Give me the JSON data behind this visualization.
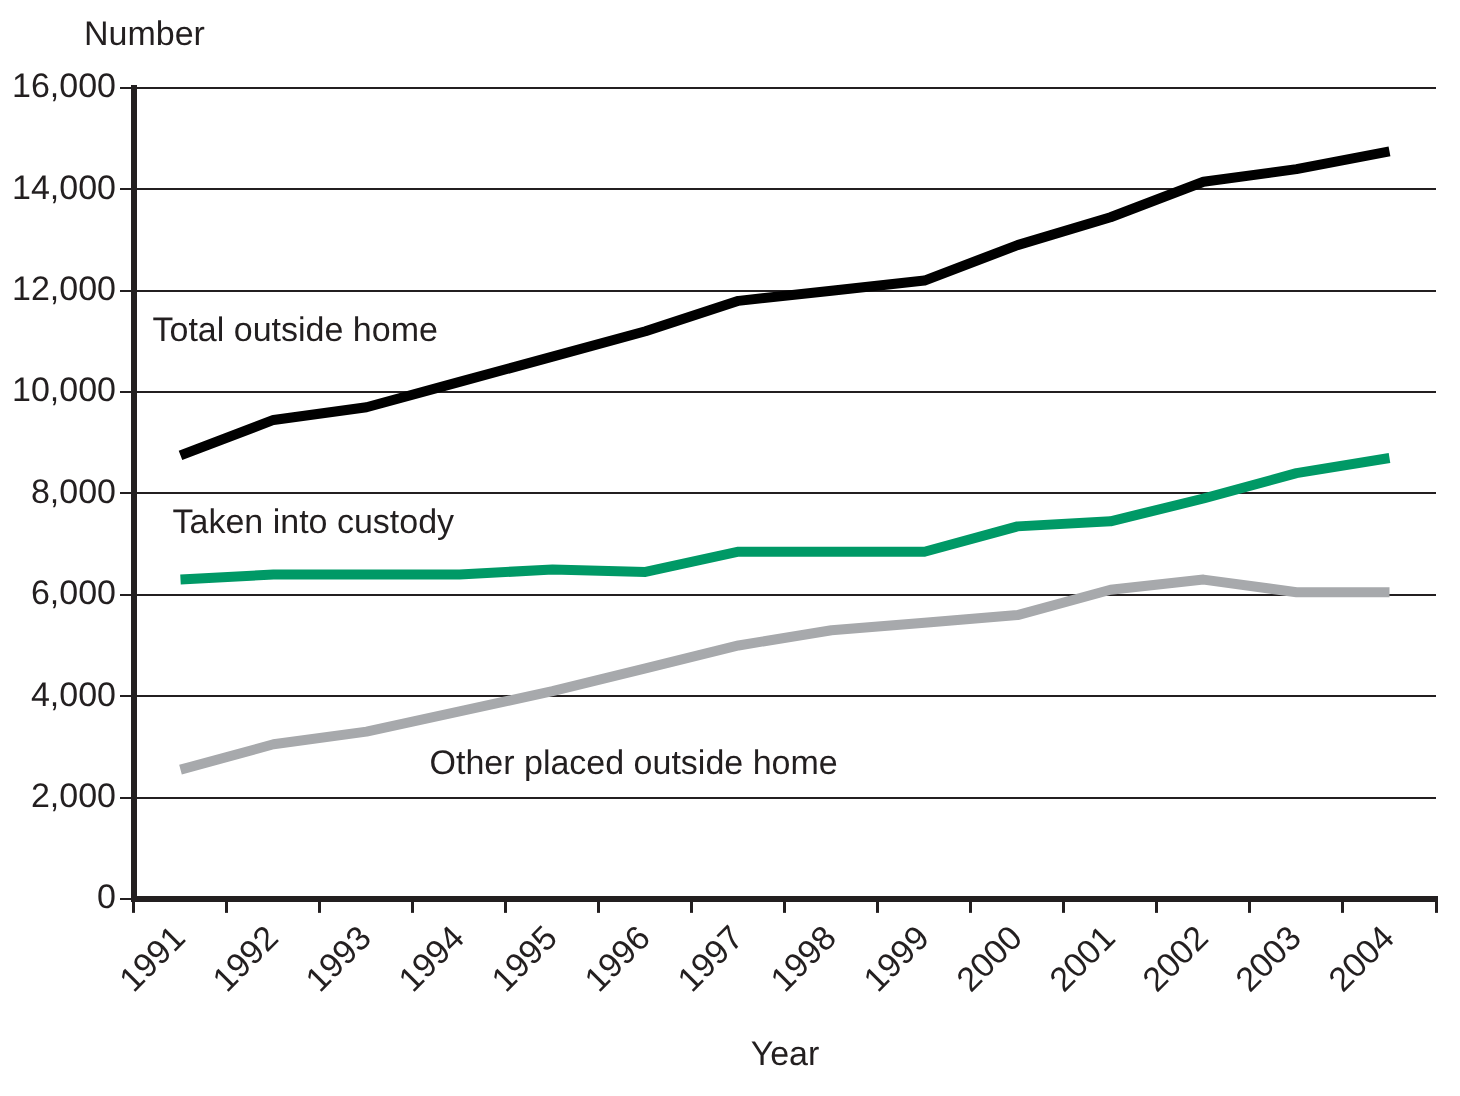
{
  "chart_data": {
    "type": "line",
    "ylabel": "Number",
    "xlabel": "Year",
    "categories": [
      "1991",
      "1992",
      "1993",
      "1994",
      "1995",
      "1996",
      "1997",
      "1998",
      "1999",
      "2000",
      "2001",
      "2002",
      "2003",
      "2004"
    ],
    "series": [
      {
        "name": "Total outside home",
        "color": "#000000",
        "values": [
          8750,
          9450,
          9700,
          10200,
          10700,
          11200,
          11800,
          12000,
          12200,
          12900,
          13450,
          14150,
          14400,
          14750
        ]
      },
      {
        "name": "Taken into custody",
        "color": "#009966",
        "values": [
          6300,
          6400,
          6400,
          6400,
          6500,
          6450,
          6850,
          6850,
          6850,
          7350,
          7450,
          7900,
          8400,
          8700
        ]
      },
      {
        "name": "Other placed outside home",
        "color": "#a7a9ac",
        "values": [
          2550,
          3050,
          3300,
          3700,
          4100,
          4550,
          5000,
          5300,
          5450,
          5600,
          6100,
          6300,
          6050,
          6050
        ]
      }
    ],
    "ylim": [
      0,
      16000
    ],
    "yticks": [
      0,
      {
        "value": 2000,
        "label": "2,000"
      },
      {
        "value": 4000,
        "label": "4,000"
      },
      {
        "value": 6000,
        "label": "6,000"
      },
      {
        "value": 8000,
        "label": "8,000"
      },
      {
        "value": 10000,
        "label": "10,000"
      },
      {
        "value": 12000,
        "label": "12,000"
      },
      {
        "value": 14000,
        "label": "14,000"
      },
      {
        "value": 16000,
        "label": "16,000"
      }
    ],
    "grid": "y",
    "legend": false,
    "marker": "none",
    "line_style": "solid"
  }
}
